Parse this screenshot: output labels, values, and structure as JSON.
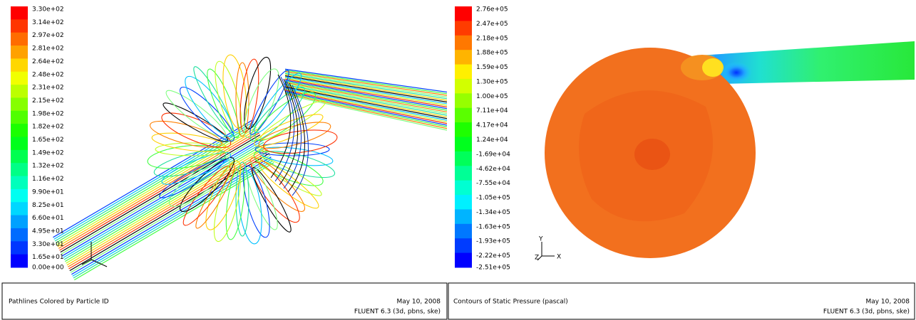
{
  "panels": [
    {
      "legend_labels": [
        "3.30e+02",
        "3.14e+02",
        "2.97e+02",
        "2.81e+02",
        "2.64e+02",
        "2.48e+02",
        "2.31e+02",
        "2.15e+02",
        "1.98e+02",
        "1.82e+02",
        "1.65e+02",
        "1.49e+02",
        "1.32e+02",
        "1.16e+02",
        "9.90e+01",
        "8.25e+01",
        "6.60e+01",
        "4.95e+01",
        "3.30e+01",
        "1.65e+01",
        "0.00e+00"
      ],
      "caption": "Pathlines Colored by Particle ID",
      "date": "May 10, 2008",
      "version": "FLUENT 6.3 (3d, pbns, ske)"
    },
    {
      "legend_labels": [
        "2.76e+05",
        "2.47e+05",
        "2.18e+05",
        "1.88e+05",
        "1.59e+05",
        "1.30e+05",
        "1.00e+05",
        "7.11e+04",
        "4.17e+04",
        "1.24e+04",
        "-1.69e+04",
        "-4.62e+04",
        "-7.55e+04",
        "-1.05e+05",
        "-1.34e+05",
        "-1.63e+05",
        "-1.93e+05",
        "-2.22e+05",
        "-2.51e+05"
      ],
      "axes": [
        "Y",
        "Z",
        "X"
      ],
      "caption": "Contours of Static Pressure (pascal)",
      "date": "May 10, 2008",
      "version": "FLUENT 6.3 (3d, pbns, ske)"
    }
  ]
}
